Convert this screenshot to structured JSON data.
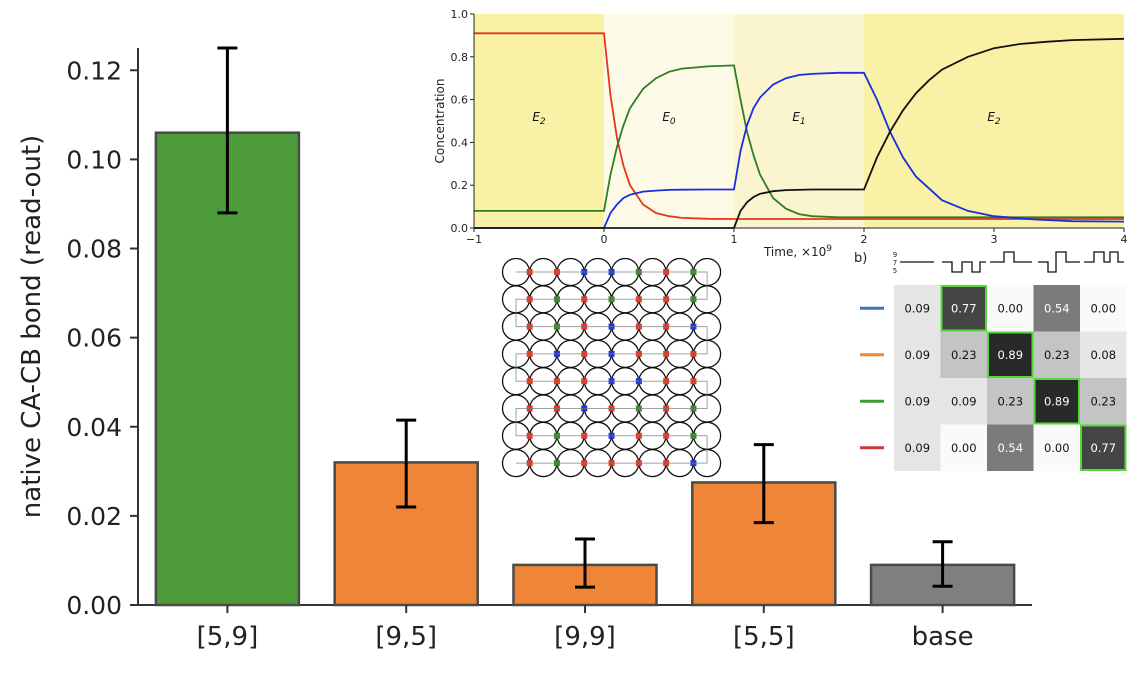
{
  "chart_data": [
    {
      "type": "bar",
      "ylabel": "native CA-CB bond (read-out)",
      "categories": [
        "[5,9]",
        "[9,5]",
        "[9,9]",
        "[5,5]",
        "base"
      ],
      "values": [
        0.106,
        0.032,
        0.009,
        0.0275,
        0.009
      ],
      "errors": [
        [
          0.088,
          0.125
        ],
        [
          0.022,
          0.0415
        ],
        [
          0.004,
          0.0148
        ],
        [
          0.0185,
          0.036
        ],
        [
          0.0042,
          0.0142
        ]
      ],
      "colors": [
        "#4d9a3a",
        "#ee8537",
        "#ee8537",
        "#ee8537",
        "#808080"
      ],
      "ylim": [
        0,
        0.125
      ],
      "yticks": [
        "0.00",
        "0.02",
        "0.04",
        "0.06",
        "0.08",
        "0.10",
        "0.12"
      ],
      "grid": false
    },
    {
      "type": "line",
      "xlabel": "Time, ×10",
      "xlabel_exp": "9",
      "ylabel": "Concentration",
      "xlim": [
        -1,
        4
      ],
      "ylim": [
        0,
        1
      ],
      "xticks": [
        "−1",
        "0",
        "1",
        "2",
        "3",
        "4"
      ],
      "yticks": [
        "0.0",
        "0.2",
        "0.4",
        "0.6",
        "0.8",
        "1.0"
      ],
      "regions": [
        {
          "label": "E",
          "sub": "2",
          "x0": -1,
          "x1": 0,
          "color": "#f9f1a5"
        },
        {
          "label": "E",
          "sub": "0",
          "x0": 0,
          "x1": 1,
          "color": "#fdfbe8"
        },
        {
          "label": "E",
          "sub": "1",
          "x0": 1,
          "x1": 2,
          "color": "#fbf5cf"
        },
        {
          "label": "E",
          "sub": "2",
          "x0": 2,
          "x1": 4,
          "color": "#f9f1a5"
        }
      ],
      "series": [
        {
          "color": "#e8341c",
          "x": [
            -1,
            0,
            0.05,
            0.1,
            0.15,
            0.2,
            0.3,
            0.4,
            0.5,
            0.6,
            0.8,
            1,
            1.5,
            2,
            2.5,
            3,
            3.5,
            4
          ],
          "y": [
            0.91,
            0.91,
            0.62,
            0.42,
            0.29,
            0.2,
            0.11,
            0.07,
            0.055,
            0.047,
            0.043,
            0.042,
            0.042,
            0.042,
            0.042,
            0.042,
            0.042,
            0.042
          ]
        },
        {
          "color": "#2f7d24",
          "x": [
            -1,
            0,
            0.05,
            0.1,
            0.15,
            0.2,
            0.3,
            0.4,
            0.5,
            0.6,
            0.8,
            1,
            1.05,
            1.1,
            1.15,
            1.2,
            1.3,
            1.4,
            1.5,
            1.6,
            1.8,
            2,
            2.5,
            3,
            3.5,
            4
          ],
          "y": [
            0.08,
            0.08,
            0.25,
            0.38,
            0.48,
            0.56,
            0.65,
            0.7,
            0.73,
            0.745,
            0.755,
            0.76,
            0.6,
            0.45,
            0.34,
            0.25,
            0.14,
            0.09,
            0.065,
            0.055,
            0.05,
            0.05,
            0.05,
            0.05,
            0.05,
            0.05
          ]
        },
        {
          "color": "#1b2de0",
          "x": [
            -1,
            0,
            0.05,
            0.1,
            0.15,
            0.2,
            0.3,
            0.4,
            0.5,
            0.6,
            0.8,
            1,
            1.05,
            1.1,
            1.15,
            1.2,
            1.3,
            1.4,
            1.5,
            1.6,
            1.8,
            2,
            2.1,
            2.2,
            2.3,
            2.4,
            2.6,
            2.8,
            3,
            3.3,
            3.6,
            4
          ],
          "y": [
            0.0,
            0.0,
            0.07,
            0.11,
            0.14,
            0.155,
            0.17,
            0.175,
            0.178,
            0.179,
            0.18,
            0.18,
            0.36,
            0.48,
            0.56,
            0.61,
            0.67,
            0.7,
            0.715,
            0.72,
            0.725,
            0.725,
            0.6,
            0.45,
            0.33,
            0.24,
            0.13,
            0.08,
            0.055,
            0.04,
            0.032,
            0.03
          ]
        },
        {
          "color": "#111111",
          "x": [
            -1,
            0,
            0.5,
            1,
            1.05,
            1.1,
            1.15,
            1.2,
            1.3,
            1.4,
            1.6,
            1.8,
            2,
            2.1,
            2.2,
            2.3,
            2.4,
            2.5,
            2.6,
            2.8,
            3,
            3.2,
            3.4,
            3.6,
            4
          ],
          "y": [
            0.0,
            0.0,
            0.0,
            0.0,
            0.08,
            0.12,
            0.145,
            0.16,
            0.172,
            0.177,
            0.18,
            0.18,
            0.18,
            0.33,
            0.45,
            0.55,
            0.63,
            0.69,
            0.74,
            0.8,
            0.84,
            0.86,
            0.87,
            0.878,
            0.884
          ]
        }
      ]
    },
    {
      "type": "heatmap",
      "panel_label": "b)",
      "header_ticks": [
        "9",
        "7",
        "5"
      ],
      "values": [
        [
          "0.09",
          "0.77",
          "0.00",
          "0.54",
          "0.00"
        ],
        [
          "0.09",
          "0.23",
          "0.89",
          "0.23",
          "0.08"
        ],
        [
          "0.09",
          "0.09",
          "0.23",
          "0.89",
          "0.23"
        ],
        [
          "0.09",
          "0.00",
          "0.54",
          "0.00",
          "0.77"
        ]
      ],
      "row_colors": [
        "#3b78b4",
        "#ee8537",
        "#3e9b3a",
        "#cc3a32"
      ],
      "highlight": [
        [
          0,
          1
        ],
        [
          1,
          2
        ],
        [
          2,
          3
        ],
        [
          3,
          4
        ]
      ],
      "highlight_color": "#55d63a"
    }
  ]
}
